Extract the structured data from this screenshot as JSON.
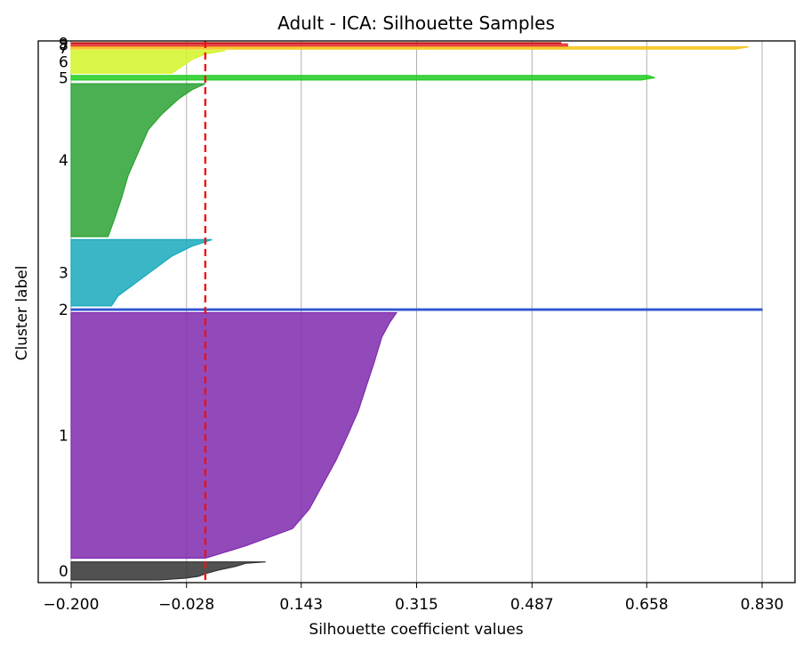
{
  "chart_data": {
    "type": "area",
    "title": "Adult - ICA: Silhouette Samples",
    "xlabel": "Silhouette coefficient values",
    "ylabel": "Cluster label",
    "xlim": [
      -0.2,
      0.83
    ],
    "xticks": [
      -0.2,
      -0.028,
      0.143,
      0.315,
      0.487,
      0.658,
      0.83
    ],
    "xtick_labels": [
      "−0.200",
      "−0.028",
      "0.143",
      "0.315",
      "0.487",
      "0.658",
      "0.830"
    ],
    "grid": "vertical",
    "average_silhouette_line": {
      "value": 0.0,
      "color": "#ee1111",
      "style": "dashed"
    },
    "clusters": [
      {
        "label": "0",
        "y_lower": 0,
        "y_upper": 48,
        "color": "#333333",
        "profile": [
          [
            0,
            -0.07
          ],
          [
            0.1,
            -0.03
          ],
          [
            0.2,
            -0.01
          ],
          [
            0.35,
            0.0
          ],
          [
            0.55,
            0.02
          ],
          [
            0.75,
            0.045
          ],
          [
            0.92,
            0.06
          ],
          [
            1,
            0.09
          ]
        ]
      },
      {
        "label": "1",
        "y_lower": 58,
        "y_upper": 710,
        "color": "#7f2aaf",
        "profile": [
          [
            0,
            0.0
          ],
          [
            0.05,
            0.06
          ],
          [
            0.12,
            0.13
          ],
          [
            0.2,
            0.155
          ],
          [
            0.3,
            0.175
          ],
          [
            0.4,
            0.195
          ],
          [
            0.5,
            0.212
          ],
          [
            0.6,
            0.228
          ],
          [
            0.7,
            0.24
          ],
          [
            0.8,
            0.252
          ],
          [
            0.9,
            0.263
          ],
          [
            0.96,
            0.275
          ],
          [
            1,
            0.285
          ]
        ]
      },
      {
        "label": "2",
        "y_lower": 716,
        "y_upper": 720,
        "color": "#2a4fcf",
        "profile": [
          [
            0,
            0.83
          ],
          [
            1,
            0.83
          ]
        ]
      },
      {
        "label": "3",
        "y_lower": 728,
        "y_upper": 904,
        "color": "#17a9bd",
        "profile": [
          [
            0,
            -0.14
          ],
          [
            0.15,
            -0.13
          ],
          [
            0.3,
            -0.11
          ],
          [
            0.45,
            -0.09
          ],
          [
            0.6,
            -0.07
          ],
          [
            0.75,
            -0.05
          ],
          [
            0.9,
            -0.02
          ],
          [
            1,
            0.01
          ]
        ]
      },
      {
        "label": "4",
        "y_lower": 912,
        "y_upper": 1318,
        "color": "#2ca234",
        "profile": [
          [
            0,
            -0.145
          ],
          [
            0.12,
            -0.135
          ],
          [
            0.25,
            -0.125
          ],
          [
            0.4,
            -0.115
          ],
          [
            0.55,
            -0.1
          ],
          [
            0.7,
            -0.085
          ],
          [
            0.8,
            -0.065
          ],
          [
            0.9,
            -0.04
          ],
          [
            0.96,
            -0.02
          ],
          [
            1,
            0.0
          ]
        ]
      },
      {
        "label": "5",
        "y_lower": 1328,
        "y_upper": 1340,
        "color": "#22cc22",
        "profile": [
          [
            0,
            0.65
          ],
          [
            0.5,
            0.67
          ],
          [
            1,
            0.66
          ]
        ]
      },
      {
        "label": "6",
        "y_lower": 1346,
        "y_upper": 1406,
        "color": "#d4f528",
        "profile": [
          [
            0,
            -0.05
          ],
          [
            0.3,
            -0.035
          ],
          [
            0.6,
            -0.02
          ],
          [
            0.85,
            0.0
          ],
          [
            1,
            0.03
          ]
        ]
      },
      {
        "label": "7",
        "y_lower": 1410,
        "y_upper": 1416,
        "color": "#f5c518",
        "profile": [
          [
            0,
            0.79
          ],
          [
            1,
            0.81
          ]
        ]
      },
      {
        "label": "8",
        "y_lower": 1418,
        "y_upper": 1424,
        "color": "#e83535",
        "profile": [
          [
            0,
            0.54
          ],
          [
            1,
            0.54
          ]
        ]
      },
      {
        "label": "9",
        "y_lower": 1425,
        "y_upper": 1427,
        "color": "#c21b1b",
        "profile": [
          [
            0,
            0.53
          ],
          [
            1,
            0.53
          ]
        ]
      }
    ],
    "ylim": [
      0,
      1427
    ]
  }
}
